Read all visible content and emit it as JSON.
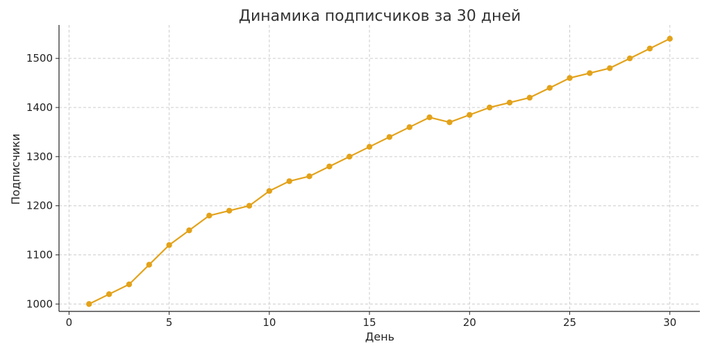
{
  "chart_data": {
    "type": "line",
    "title": "Динамика подписчиков за 30 дней",
    "xlabel": "День",
    "ylabel": "Подписчики",
    "xlim": [
      -0.5,
      31.5
    ],
    "ylim": [
      985,
      1568
    ],
    "xticks": [
      0,
      5,
      10,
      15,
      20,
      25,
      30
    ],
    "yticks": [
      1000,
      1100,
      1200,
      1300,
      1400,
      1500
    ],
    "grid": true,
    "series": [
      {
        "color": "#e3a21a",
        "x": [
          1,
          2,
          3,
          4,
          5,
          6,
          7,
          8,
          9,
          10,
          11,
          12,
          13,
          14,
          15,
          16,
          17,
          18,
          19,
          20,
          21,
          22,
          23,
          24,
          25,
          26,
          27,
          28,
          29,
          30
        ],
        "values": [
          1000,
          1020,
          1040,
          1080,
          1120,
          1150,
          1180,
          1190,
          1200,
          1230,
          1250,
          1260,
          1280,
          1300,
          1320,
          1340,
          1360,
          1380,
          1370,
          1385,
          1400,
          1410,
          1420,
          1440,
          1460,
          1470,
          1480,
          1500,
          1520,
          1540
        ]
      }
    ]
  }
}
